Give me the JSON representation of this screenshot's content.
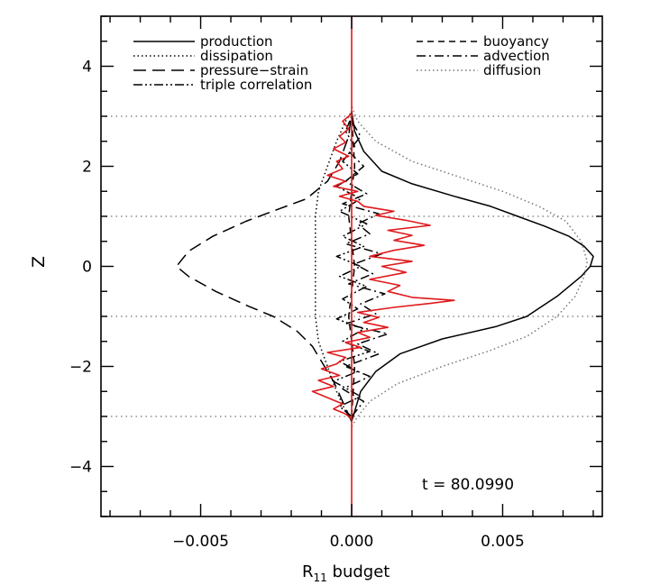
{
  "chart_data": {
    "type": "line",
    "title": "",
    "xlabel_main": "R",
    "xlabel_sub": "11",
    "xlabel_rest": " budget",
    "ylabel": "Z",
    "xlim": [
      -0.0083,
      0.0083
    ],
    "ylim": [
      -5,
      5
    ],
    "x_ticks": [
      -0.005,
      0.0,
      0.005
    ],
    "x_tick_labels": [
      "−0.005",
      "0.000",
      "0.005"
    ],
    "y_ticks": [
      -4,
      -2,
      0,
      2,
      4
    ],
    "y_tick_labels": [
      "−4",
      "−2",
      "0",
      "2",
      "4"
    ],
    "reference_lines_z": [
      -3,
      -1,
      1,
      3
    ],
    "annotation": "t  =  80.0990",
    "legend_left": [
      "production",
      "dissipation",
      "pressure−strain",
      "triple correlation"
    ],
    "legend_right": [
      "buoyancy",
      "advection",
      "diffusion"
    ],
    "series": [
      {
        "name": "production",
        "style": "solid",
        "color": "#000000",
        "points": [
          [
            0,
            -3.1
          ],
          [
            0.0001,
            -2.9
          ],
          [
            0.0003,
            -2.5
          ],
          [
            0.0008,
            -2.1
          ],
          [
            0.0016,
            -1.75
          ],
          [
            0.003,
            -1.45
          ],
          [
            0.0048,
            -1.2
          ],
          [
            0.0058,
            -1.0
          ],
          [
            0.0063,
            -0.8
          ],
          [
            0.0068,
            -0.6
          ],
          [
            0.0072,
            -0.4
          ],
          [
            0.0076,
            -0.2
          ],
          [
            0.0079,
            0.0
          ],
          [
            0.008,
            0.2
          ],
          [
            0.0077,
            0.4
          ],
          [
            0.0072,
            0.6
          ],
          [
            0.0064,
            0.8
          ],
          [
            0.0055,
            1.0
          ],
          [
            0.0046,
            1.2
          ],
          [
            0.0034,
            1.4
          ],
          [
            0.002,
            1.65
          ],
          [
            0.001,
            1.9
          ],
          [
            0.0004,
            2.3
          ],
          [
            0.0001,
            2.7
          ],
          [
            0,
            3.1
          ]
        ]
      },
      {
        "name": "diffusion",
        "style": "dotted",
        "color": "#777777",
        "points": [
          [
            0,
            -3.2
          ],
          [
            0.0002,
            -3.0
          ],
          [
            0.0006,
            -2.7
          ],
          [
            0.0015,
            -2.35
          ],
          [
            0.003,
            -2.0
          ],
          [
            0.0045,
            -1.7
          ],
          [
            0.0058,
            -1.4
          ],
          [
            0.0068,
            -1.0
          ],
          [
            0.0074,
            -0.6
          ],
          [
            0.0077,
            -0.2
          ],
          [
            0.0078,
            0.1
          ],
          [
            0.0076,
            0.5
          ],
          [
            0.0071,
            0.9
          ],
          [
            0.0062,
            1.2
          ],
          [
            0.005,
            1.5
          ],
          [
            0.0035,
            1.8
          ],
          [
            0.002,
            2.1
          ],
          [
            0.0008,
            2.5
          ],
          [
            0.0002,
            2.9
          ],
          [
            0,
            3.2
          ]
        ]
      },
      {
        "name": "pressure−strain",
        "style": "longdash",
        "color": "#000000",
        "points": [
          [
            0,
            -3.1
          ],
          [
            -0.0003,
            -2.7
          ],
          [
            -0.0006,
            -2.3
          ],
          [
            -0.001,
            -1.9
          ],
          [
            -0.0013,
            -1.6
          ],
          [
            -0.0018,
            -1.3
          ],
          [
            -0.0026,
            -1.0
          ],
          [
            -0.0034,
            -0.8
          ],
          [
            -0.0045,
            -0.5
          ],
          [
            -0.0054,
            -0.2
          ],
          [
            -0.0058,
            0.0
          ],
          [
            -0.0054,
            0.3
          ],
          [
            -0.0046,
            0.6
          ],
          [
            -0.0035,
            0.9
          ],
          [
            -0.0024,
            1.15
          ],
          [
            -0.0015,
            1.35
          ],
          [
            -0.0008,
            1.7
          ],
          [
            -0.0004,
            2.1
          ],
          [
            -0.0001,
            2.6
          ],
          [
            0,
            3.1
          ]
        ]
      },
      {
        "name": "dissipation",
        "style": "dotted",
        "color": "#000000",
        "points": [
          [
            0,
            -3.1
          ],
          [
            -0.0002,
            -2.9
          ],
          [
            -0.0005,
            -2.5
          ],
          [
            -0.0008,
            -2.0
          ],
          [
            -0.0011,
            -1.5
          ],
          [
            -0.0012,
            -1.0
          ],
          [
            -0.0012,
            -0.5
          ],
          [
            -0.0012,
            0.0
          ],
          [
            -0.0012,
            0.5
          ],
          [
            -0.0012,
            1.0
          ],
          [
            -0.0011,
            1.5
          ],
          [
            -0.0008,
            2.0
          ],
          [
            -0.0005,
            2.5
          ],
          [
            -0.0002,
            2.9
          ],
          [
            0,
            3.1
          ]
        ]
      },
      {
        "name": "advection",
        "style": "dashdot",
        "color": "#000000",
        "points": [
          [
            0,
            -3.0
          ],
          [
            0.0004,
            -2.7
          ],
          [
            -0.0003,
            -2.45
          ],
          [
            0.0006,
            -2.2
          ],
          [
            -0.0002,
            -2.0
          ],
          [
            0.0009,
            -1.75
          ],
          [
            0.0002,
            -1.55
          ],
          [
            0.0012,
            -1.35
          ],
          [
            -0.0002,
            -1.15
          ],
          [
            0.0008,
            -0.95
          ],
          [
            0.0003,
            -0.75
          ],
          [
            0.0011,
            -0.55
          ],
          [
            -0.0001,
            -0.35
          ],
          [
            0.0007,
            -0.15
          ],
          [
            0.0001,
            0.05
          ],
          [
            0.001,
            0.25
          ],
          [
            -0.0002,
            0.45
          ],
          [
            0.0006,
            0.65
          ],
          [
            0.0002,
            0.85
          ],
          [
            0.0009,
            1.05
          ],
          [
            -0.0003,
            1.25
          ],
          [
            0.0005,
            1.45
          ],
          [
            -0.0002,
            1.7
          ],
          [
            0.0004,
            2.0
          ],
          [
            -0.0001,
            2.3
          ],
          [
            0.0003,
            2.6
          ],
          [
            0,
            2.9
          ]
        ]
      },
      {
        "name": "triple correlation",
        "style": "dashdotdot",
        "color": "#000000",
        "points": [
          [
            0,
            -3.0
          ],
          [
            -0.0004,
            -2.8
          ],
          [
            0.0003,
            -2.6
          ],
          [
            -0.0006,
            -2.3
          ],
          [
            0.0002,
            -2.1
          ],
          [
            -0.0004,
            -1.9
          ],
          [
            0.0006,
            -1.7
          ],
          [
            -0.0003,
            -1.5
          ],
          [
            0.0004,
            -1.25
          ],
          [
            -0.0005,
            -1.05
          ],
          [
            0.0002,
            -0.85
          ],
          [
            -0.0003,
            -0.65
          ],
          [
            0.0005,
            -0.4
          ],
          [
            -0.0004,
            -0.2
          ],
          [
            0.0003,
            0.0
          ],
          [
            -0.0005,
            0.2
          ],
          [
            0.0004,
            0.4
          ],
          [
            -0.0003,
            0.6
          ],
          [
            0.0005,
            0.85
          ],
          [
            -0.0004,
            1.1
          ],
          [
            0.0003,
            1.35
          ],
          [
            -0.0005,
            1.6
          ],
          [
            0.0002,
            1.85
          ],
          [
            -0.0003,
            2.1
          ],
          [
            0.0001,
            2.4
          ],
          [
            -0.0002,
            2.7
          ],
          [
            0,
            3.0
          ]
        ]
      },
      {
        "name": "buoyancy",
        "style": "dashed",
        "color": "#000000",
        "points": [
          [
            0,
            -3.0
          ],
          [
            0.0001,
            -2.0
          ],
          [
            -0.0001,
            -1.0
          ],
          [
            0.0001,
            0.0
          ],
          [
            -0.0001,
            1.0
          ],
          [
            0.0001,
            2.0
          ],
          [
            0,
            3.0
          ]
        ]
      },
      {
        "name": "",
        "style": "solid",
        "color": "#e0191c",
        "points": [
          [
            0,
            -3.05
          ],
          [
            -0.0002,
            -2.95
          ],
          [
            -0.0006,
            -2.85
          ],
          [
            -0.0003,
            -2.75
          ],
          [
            -0.0009,
            -2.6
          ],
          [
            -0.0013,
            -2.5
          ],
          [
            -0.0006,
            -2.4
          ],
          [
            -0.0011,
            -2.28
          ],
          [
            -0.0004,
            -2.18
          ],
          [
            -0.001,
            -2.05
          ],
          [
            -0.0005,
            -1.95
          ],
          [
            -0.0002,
            -1.82
          ],
          [
            -0.0008,
            -1.72
          ],
          [
            0.0003,
            -1.62
          ],
          [
            -0.0002,
            -1.52
          ],
          [
            0.0006,
            -1.42
          ],
          [
            0.0002,
            -1.32
          ],
          [
            0.0012,
            -1.22
          ],
          [
            0.0004,
            -1.12
          ],
          [
            0.0009,
            -1.02
          ],
          [
            0.0002,
            -0.92
          ],
          [
            0.0014,
            -0.82
          ],
          [
            0.0026,
            -0.74
          ],
          [
            0.0034,
            -0.68
          ],
          [
            0.002,
            -0.62
          ],
          [
            0.0012,
            -0.5
          ],
          [
            0.0016,
            -0.38
          ],
          [
            0.0006,
            -0.26
          ],
          [
            0.0018,
            -0.12
          ],
          [
            0.001,
            0.0
          ],
          [
            0.002,
            0.1
          ],
          [
            0.0006,
            0.2
          ],
          [
            0.0014,
            0.32
          ],
          [
            0.0024,
            0.42
          ],
          [
            0.0014,
            0.52
          ],
          [
            0.002,
            0.62
          ],
          [
            0.0012,
            0.72
          ],
          [
            0.0026,
            0.82
          ],
          [
            0.0018,
            0.92
          ],
          [
            0.0008,
            1.02
          ],
          [
            0.0014,
            1.1
          ],
          [
            0.0004,
            1.2
          ],
          [
            0.0002,
            1.3
          ],
          [
            -0.0004,
            1.4
          ],
          [
            0.0002,
            1.5
          ],
          [
            -0.0006,
            1.6
          ],
          [
            -0.0002,
            1.7
          ],
          [
            -0.0008,
            1.82
          ],
          [
            -0.0003,
            1.95
          ],
          [
            -0.0005,
            2.1
          ],
          [
            -0.0001,
            2.2
          ],
          [
            -0.0006,
            2.35
          ],
          [
            -0.0002,
            2.48
          ],
          [
            -0.0004,
            2.6
          ],
          [
            -0.0001,
            2.75
          ],
          [
            -0.0003,
            2.9
          ],
          [
            0,
            3.05
          ]
        ]
      }
    ]
  }
}
